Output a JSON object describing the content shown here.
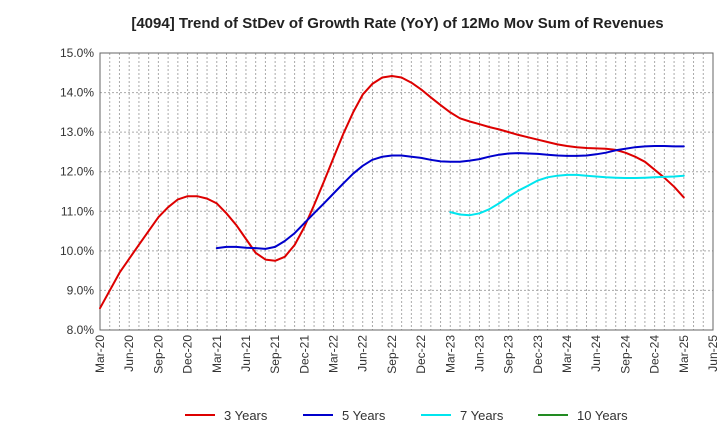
{
  "chart_data": {
    "type": "line",
    "title": "[4094]  Trend of StDev of Growth Rate (YoY) of 12Mo Mov Sum of Revenues",
    "xlabel": "",
    "ylabel": "",
    "ylim": [
      8.0,
      15.0
    ],
    "xlim": [
      0,
      21
    ],
    "grid": true,
    "legend_position": "bottom",
    "y_ticks": [
      {
        "value": 8.0,
        "label": "8.0%"
      },
      {
        "value": 9.0,
        "label": "9.0%"
      },
      {
        "value": 10.0,
        "label": "10.0%"
      },
      {
        "value": 11.0,
        "label": "11.0%"
      },
      {
        "value": 12.0,
        "label": "12.0%"
      },
      {
        "value": 13.0,
        "label": "13.0%"
      },
      {
        "value": 14.0,
        "label": "14.0%"
      },
      {
        "value": 15.0,
        "label": "15.0%"
      }
    ],
    "x_ticks": [
      "Mar-20",
      "Jun-20",
      "Sep-20",
      "Dec-20",
      "Mar-21",
      "Jun-21",
      "Sep-21",
      "Dec-21",
      "Mar-22",
      "Jun-22",
      "Sep-22",
      "Dec-22",
      "Mar-23",
      "Jun-23",
      "Sep-23",
      "Dec-23",
      "Mar-24",
      "Jun-24",
      "Sep-24",
      "Dec-24",
      "Mar-25",
      "Jun-25"
    ],
    "series": [
      {
        "name": "3 Years",
        "color": "#dd0000",
        "x": [
          0,
          0.67,
          1.33,
          2,
          2.33,
          2.67,
          3,
          3.33,
          3.67,
          4,
          4.33,
          4.67,
          5,
          5.33,
          5.67,
          6,
          6.33,
          6.67,
          7,
          7.33,
          7.67,
          8,
          8.33,
          8.67,
          9,
          9.33,
          9.67,
          10,
          10.33,
          10.67,
          11,
          11.33,
          11.67,
          12,
          12.33,
          12.67,
          13,
          13.33,
          13.67,
          14,
          14.33,
          14.67,
          15,
          15.33,
          15.67,
          16,
          16.33,
          16.67,
          17,
          17.33,
          17.67,
          18,
          18.33,
          18.67,
          19,
          19.33,
          19.67,
          20
        ],
        "values": [
          8.55,
          9.45,
          10.15,
          10.85,
          11.1,
          11.3,
          11.38,
          11.38,
          11.32,
          11.2,
          10.95,
          10.65,
          10.3,
          9.95,
          9.78,
          9.75,
          9.85,
          10.15,
          10.6,
          11.15,
          11.75,
          12.35,
          12.95,
          13.5,
          13.95,
          14.22,
          14.38,
          14.42,
          14.38,
          14.25,
          14.08,
          13.88,
          13.68,
          13.5,
          13.35,
          13.27,
          13.2,
          13.13,
          13.07,
          13.0,
          12.93,
          12.87,
          12.81,
          12.75,
          12.69,
          12.65,
          12.62,
          12.6,
          12.59,
          12.58,
          12.55,
          12.48,
          12.38,
          12.25,
          12.05,
          11.85,
          11.62,
          11.35
        ]
      },
      {
        "name": "5 Years",
        "color": "#0000cc",
        "x": [
          4,
          4.33,
          4.67,
          5,
          5.33,
          5.67,
          6,
          6.33,
          6.67,
          7,
          7.33,
          7.67,
          8,
          8.33,
          8.67,
          9,
          9.33,
          9.67,
          10,
          10.33,
          10.67,
          11,
          11.33,
          11.67,
          12,
          12.33,
          12.67,
          13,
          13.33,
          13.67,
          14,
          14.33,
          14.67,
          15,
          15.33,
          15.67,
          16,
          16.33,
          16.67,
          17,
          17.33,
          17.67,
          18,
          18.33,
          18.67,
          19,
          19.33,
          19.67,
          20
        ],
        "values": [
          10.07,
          10.1,
          10.1,
          10.08,
          10.07,
          10.05,
          10.1,
          10.25,
          10.45,
          10.7,
          10.95,
          11.2,
          11.45,
          11.7,
          11.95,
          12.15,
          12.3,
          12.38,
          12.41,
          12.41,
          12.38,
          12.35,
          12.3,
          12.26,
          12.25,
          12.25,
          12.28,
          12.32,
          12.38,
          12.43,
          12.46,
          12.47,
          12.46,
          12.45,
          12.43,
          12.41,
          12.4,
          12.4,
          12.41,
          12.44,
          12.48,
          12.54,
          12.58,
          12.62,
          12.64,
          12.65,
          12.65,
          12.64,
          12.64
        ]
      },
      {
        "name": "7 Years",
        "color": "#00e5ee",
        "x": [
          12,
          12.33,
          12.67,
          13,
          13.33,
          13.67,
          14,
          14.33,
          14.67,
          15,
          15.33,
          15.67,
          16,
          16.33,
          16.67,
          17,
          17.33,
          17.67,
          18,
          18.33,
          18.67,
          19,
          19.33,
          19.67,
          20
        ],
        "values": [
          10.98,
          10.92,
          10.9,
          10.95,
          11.05,
          11.2,
          11.37,
          11.52,
          11.65,
          11.78,
          11.86,
          11.9,
          11.92,
          11.92,
          11.9,
          11.88,
          11.86,
          11.85,
          11.84,
          11.84,
          11.85,
          11.86,
          11.87,
          11.88,
          11.9
        ]
      },
      {
        "name": "10 Years",
        "color": "#228b22",
        "x": [],
        "values": []
      }
    ]
  }
}
